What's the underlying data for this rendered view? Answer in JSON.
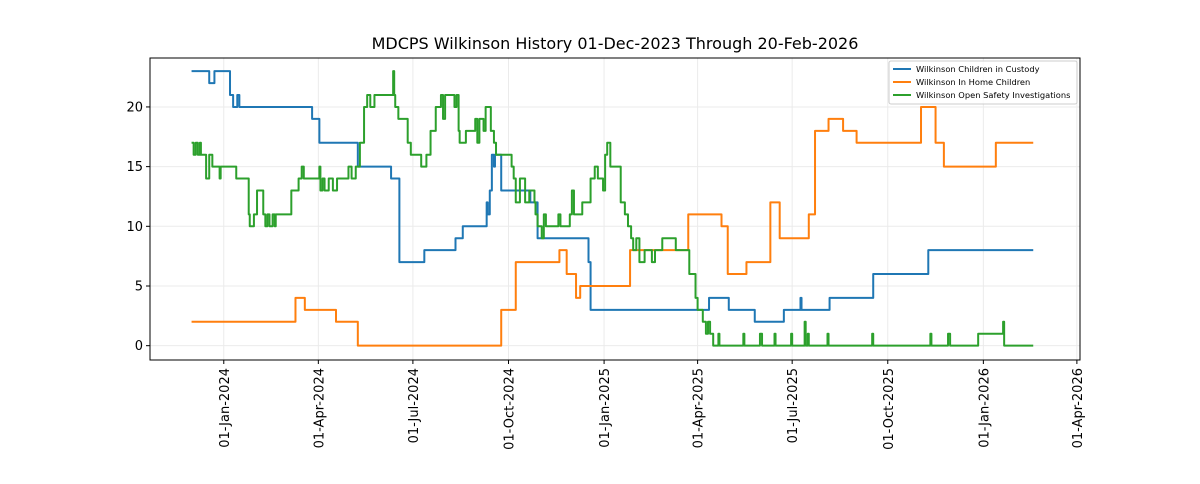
{
  "chart_data": {
    "type": "line",
    "title": "MDCPS Wilkinson History 01-Dec-2023 Through 20-Feb-2026",
    "xlabel": "",
    "ylabel": "",
    "x_units": "days since 01-Dec-2023",
    "xlim": [
      -40,
      855
    ],
    "ylim": [
      -1.2,
      24.1
    ],
    "grid": true,
    "legend_position": "top-right",
    "yticks": [
      0,
      5,
      10,
      15,
      20
    ],
    "xticks": [
      {
        "day": 31,
        "label": "01-Jan-2024"
      },
      {
        "day": 122,
        "label": "01-Apr-2024"
      },
      {
        "day": 213,
        "label": "01-Jul-2024"
      },
      {
        "day": 305,
        "label": "01-Oct-2024"
      },
      {
        "day": 397,
        "label": "01-Jan-2025"
      },
      {
        "day": 487,
        "label": "01-Apr-2025"
      },
      {
        "day": 578,
        "label": "01-Jul-2025"
      },
      {
        "day": 670,
        "label": "01-Oct-2025"
      },
      {
        "day": 762,
        "label": "01-Jan-2026"
      },
      {
        "day": 852,
        "label": "01-Apr-2026"
      }
    ],
    "series": [
      {
        "name": "Wilkinson Children in Custody",
        "color": "#1f77b4",
        "points": [
          [
            0,
            23
          ],
          [
            17,
            22
          ],
          [
            22,
            23
          ],
          [
            37,
            21
          ],
          [
            40,
            20
          ],
          [
            44,
            21
          ],
          [
            46,
            20
          ],
          [
            116,
            19
          ],
          [
            123,
            17
          ],
          [
            160,
            15
          ],
          [
            192,
            14
          ],
          [
            200,
            7
          ],
          [
            224,
            8
          ],
          [
            254,
            9
          ],
          [
            261,
            10
          ],
          [
            284,
            12
          ],
          [
            285,
            11
          ],
          [
            287,
            13
          ],
          [
            289,
            16
          ],
          [
            291,
            15
          ],
          [
            292,
            16
          ],
          [
            298,
            13
          ],
          [
            326,
            12
          ],
          [
            333,
            9
          ],
          [
            382,
            7
          ],
          [
            384,
            3
          ],
          [
            498,
            4
          ],
          [
            517,
            3
          ],
          [
            542,
            2
          ],
          [
            570,
            3
          ],
          [
            586,
            4
          ],
          [
            587,
            3
          ],
          [
            614,
            4
          ],
          [
            656,
            6
          ],
          [
            709,
            8
          ],
          [
            810,
            8
          ]
        ]
      },
      {
        "name": "Wilkinson In Home Children",
        "color": "#ff7f0e",
        "points": [
          [
            0,
            2
          ],
          [
            100,
            4
          ],
          [
            109,
            3
          ],
          [
            139,
            2
          ],
          [
            160,
            0
          ],
          [
            298,
            3
          ],
          [
            312,
            7
          ],
          [
            354,
            8
          ],
          [
            361,
            6
          ],
          [
            370,
            4
          ],
          [
            374,
            5
          ],
          [
            422,
            8
          ],
          [
            478,
            11
          ],
          [
            510,
            10
          ],
          [
            516,
            6
          ],
          [
            534,
            7
          ],
          [
            557,
            12
          ],
          [
            566,
            9
          ],
          [
            594,
            11
          ],
          [
            600,
            18
          ],
          [
            613,
            19
          ],
          [
            627,
            18
          ],
          [
            640,
            17
          ],
          [
            702,
            20
          ],
          [
            716,
            17
          ],
          [
            724,
            15
          ],
          [
            774,
            17
          ],
          [
            810,
            17
          ]
        ]
      },
      {
        "name": "Wilkinson Open Safety Investigations",
        "color": "#2ca02c",
        "points": [
          [
            0,
            17
          ],
          [
            2,
            16
          ],
          [
            4,
            17
          ],
          [
            6,
            16
          ],
          [
            8,
            17
          ],
          [
            9,
            16
          ],
          [
            14,
            14
          ],
          [
            17,
            16
          ],
          [
            20,
            15
          ],
          [
            27,
            14
          ],
          [
            28,
            15
          ],
          [
            43,
            14
          ],
          [
            55,
            11
          ],
          [
            56,
            10
          ],
          [
            60,
            11
          ],
          [
            63,
            13
          ],
          [
            69,
            11
          ],
          [
            71,
            10
          ],
          [
            73,
            11
          ],
          [
            75,
            10
          ],
          [
            78,
            11
          ],
          [
            80,
            10
          ],
          [
            81,
            11
          ],
          [
            96,
            13
          ],
          [
            103,
            14
          ],
          [
            106,
            15
          ],
          [
            108,
            14
          ],
          [
            123,
            15
          ],
          [
            124,
            13
          ],
          [
            126,
            14
          ],
          [
            128,
            13
          ],
          [
            132,
            14
          ],
          [
            136,
            13
          ],
          [
            140,
            14
          ],
          [
            151,
            15
          ],
          [
            154,
            14
          ],
          [
            158,
            15
          ],
          [
            162,
            17
          ],
          [
            166,
            20
          ],
          [
            169,
            21
          ],
          [
            172,
            20
          ],
          [
            176,
            21
          ],
          [
            194,
            23
          ],
          [
            195,
            21
          ],
          [
            196,
            20
          ],
          [
            199,
            19
          ],
          [
            208,
            17
          ],
          [
            211,
            16
          ],
          [
            221,
            15
          ],
          [
            226,
            16
          ],
          [
            230,
            18
          ],
          [
            235,
            20
          ],
          [
            240,
            21
          ],
          [
            242,
            19
          ],
          [
            244,
            21
          ],
          [
            253,
            20
          ],
          [
            255,
            21
          ],
          [
            257,
            18
          ],
          [
            258,
            17
          ],
          [
            264,
            18
          ],
          [
            273,
            19
          ],
          [
            275,
            17
          ],
          [
            277,
            19
          ],
          [
            281,
            18
          ],
          [
            283,
            20
          ],
          [
            288,
            18
          ],
          [
            291,
            17
          ],
          [
            293,
            16
          ],
          [
            308,
            15
          ],
          [
            310,
            14
          ],
          [
            312,
            12
          ],
          [
            316,
            14
          ],
          [
            321,
            12
          ],
          [
            325,
            13
          ],
          [
            330,
            12
          ],
          [
            331,
            11
          ],
          [
            333,
            10
          ],
          [
            337,
            9
          ],
          [
            339,
            11
          ],
          [
            341,
            10
          ],
          [
            353,
            11
          ],
          [
            355,
            10
          ],
          [
            364,
            11
          ],
          [
            366,
            13
          ],
          [
            368,
            11
          ],
          [
            376,
            12
          ],
          [
            384,
            14
          ],
          [
            388,
            15
          ],
          [
            391,
            14
          ],
          [
            396,
            13
          ],
          [
            398,
            16
          ],
          [
            400,
            17
          ],
          [
            403,
            15
          ],
          [
            413,
            12
          ],
          [
            417,
            11
          ],
          [
            420,
            10
          ],
          [
            423,
            9
          ],
          [
            425,
            8
          ],
          [
            428,
            9
          ],
          [
            431,
            7
          ],
          [
            436,
            8
          ],
          [
            443,
            7
          ],
          [
            446,
            8
          ],
          [
            453,
            9
          ],
          [
            466,
            8
          ],
          [
            479,
            6
          ],
          [
            485,
            4
          ],
          [
            487,
            3
          ],
          [
            492,
            2
          ],
          [
            495,
            1
          ],
          [
            497,
            2
          ],
          [
            499,
            1
          ],
          [
            502,
            0
          ],
          [
            507,
            1
          ],
          [
            508,
            0
          ],
          [
            531,
            1
          ],
          [
            532,
            0
          ],
          [
            547,
            1
          ],
          [
            549,
            0
          ],
          [
            561,
            1
          ],
          [
            562,
            0
          ],
          [
            577,
            1
          ],
          [
            578,
            0
          ],
          [
            590,
            2
          ],
          [
            591,
            0
          ],
          [
            593,
            1
          ],
          [
            594,
            0
          ],
          [
            612,
            1
          ],
          [
            613,
            0
          ],
          [
            655,
            1
          ],
          [
            656,
            0
          ],
          [
            711,
            1
          ],
          [
            712,
            0
          ],
          [
            728,
            1
          ],
          [
            730,
            0
          ],
          [
            757,
            1
          ],
          [
            781,
            2
          ],
          [
            782,
            0
          ],
          [
            810,
            0
          ]
        ]
      }
    ]
  }
}
